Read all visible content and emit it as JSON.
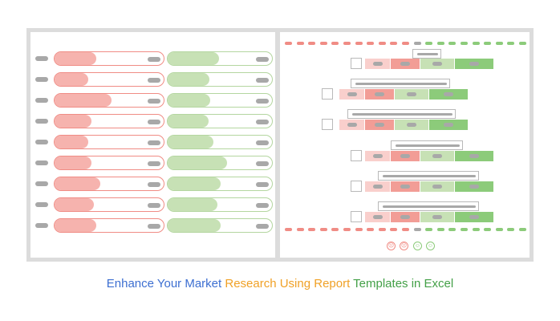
{
  "caption": {
    "part1": "Enhance Your Market ",
    "part2": "Research Using Report ",
    "part3": "Templates in Excel"
  },
  "colors": {
    "blue": "#3d6fd1",
    "orange": "#f0a126",
    "green": "#43a047",
    "red_fill": "#f6b3ae",
    "green_fill": "#c7e1b5"
  },
  "left_rows": [
    {
      "red_fill_pct": 38,
      "green_fill_pct": 49
    },
    {
      "red_fill_pct": 31,
      "green_fill_pct": 40
    },
    {
      "red_fill_pct": 52,
      "green_fill_pct": 41
    },
    {
      "red_fill_pct": 34,
      "green_fill_pct": 39
    },
    {
      "red_fill_pct": 31,
      "green_fill_pct": 44
    },
    {
      "red_fill_pct": 34,
      "green_fill_pct": 57
    },
    {
      "red_fill_pct": 42,
      "green_fill_pct": 51
    },
    {
      "red_fill_pct": 36,
      "green_fill_pct": 48
    },
    {
      "red_fill_pct": 38,
      "green_fill_pct": 51
    }
  ],
  "faces": [
    "very-sad-face-icon",
    "sad-face-icon",
    "happy-face-icon",
    "very-happy-face-icon"
  ]
}
